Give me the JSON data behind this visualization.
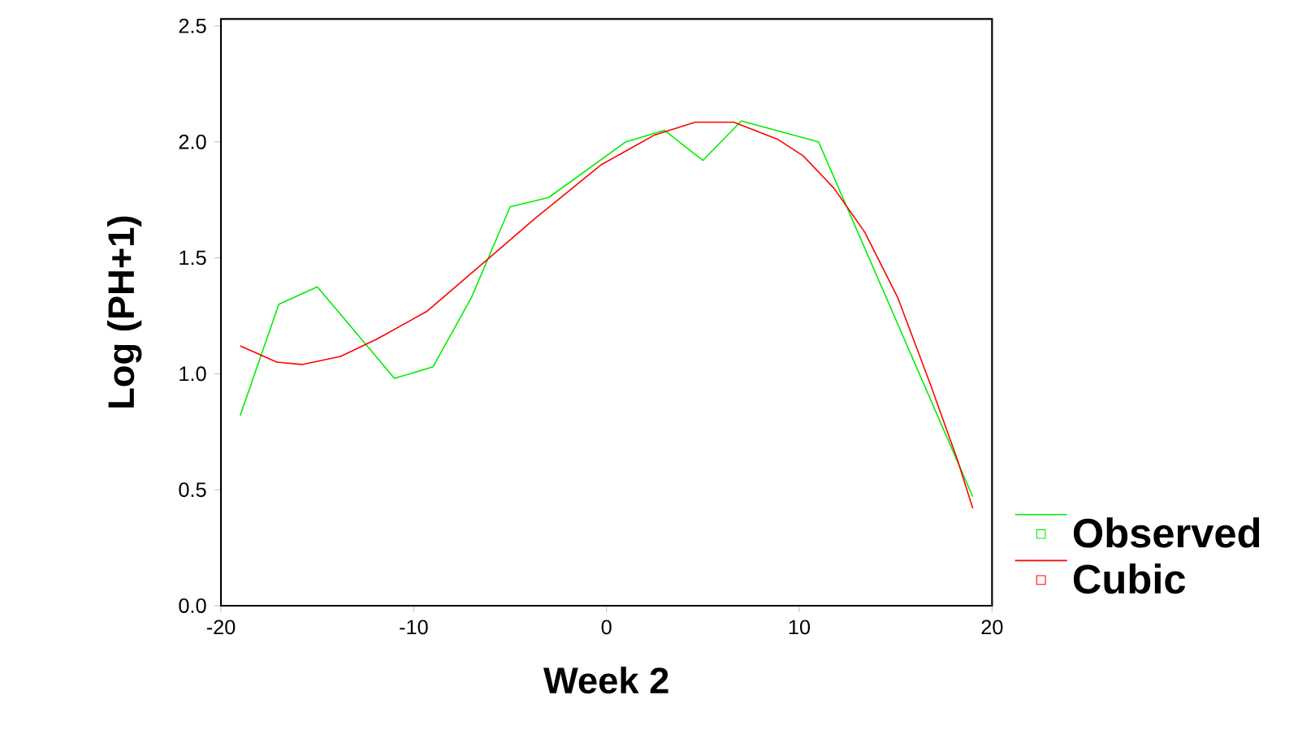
{
  "chart_data": {
    "type": "line",
    "xlabel": "Week 2",
    "ylabel": "Log (PH+1)",
    "xlim": [
      -20,
      20
    ],
    "xticks": [
      -20,
      -10,
      0,
      10,
      20
    ],
    "ylim": [
      0,
      2.53
    ],
    "yticks": [
      {
        "value": 0,
        "label": "0.0"
      },
      {
        "value": 0.5,
        "label": "0.5"
      },
      {
        "value": 1,
        "label": "1.0"
      },
      {
        "value": 1.5,
        "label": "1.5"
      },
      {
        "value": 2,
        "label": "2.0"
      },
      {
        "value": 2.5,
        "label": "2.5"
      }
    ],
    "legend": "right",
    "grid": false,
    "marker": "none",
    "series": [
      {
        "name": "Observed",
        "color": "#00ee00",
        "x": [
          -19,
          -17,
          -15,
          -11,
          -9,
          -7,
          -5,
          -3,
          1,
          3,
          5,
          7,
          11,
          19
        ],
        "values": [
          0.82,
          1.3,
          1.375,
          0.98,
          1.03,
          1.33,
          1.72,
          1.76,
          2.0,
          2.05,
          1.92,
          2.09,
          2.0,
          0.47
        ]
      },
      {
        "name": "Cubic",
        "color": "#ff0000",
        "x": [
          -19,
          -17.1,
          -15.8,
          -13.8,
          -11.9,
          -9.3,
          -6.5,
          -3.7,
          -0.3,
          2.5,
          4.6,
          6.6,
          8.9,
          10.2,
          11.8,
          13.4,
          15.1,
          16.8,
          18.2,
          19
        ],
        "values": [
          1.12,
          1.05,
          1.04,
          1.075,
          1.15,
          1.27,
          1.47,
          1.67,
          1.9,
          2.03,
          2.085,
          2.085,
          2.01,
          1.94,
          1.8,
          1.61,
          1.33,
          0.955,
          0.63,
          0.42
        ]
      }
    ]
  }
}
